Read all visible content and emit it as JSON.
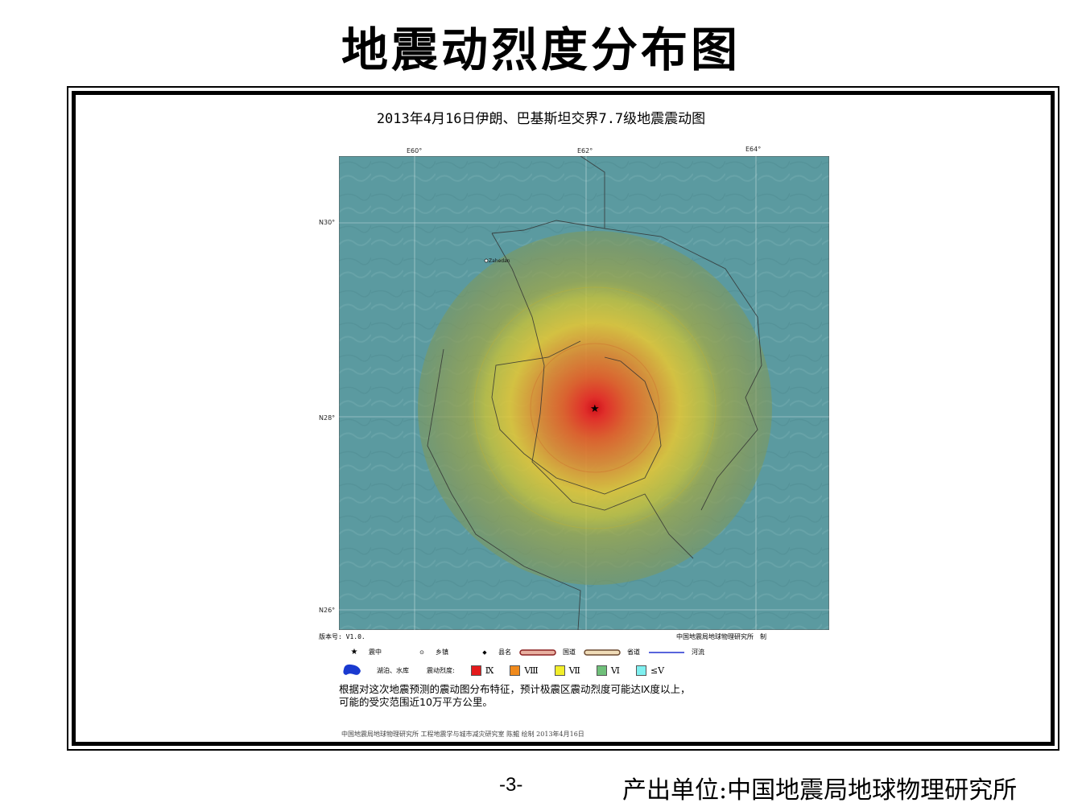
{
  "slide": {
    "title": "地震动烈度分布图",
    "page_number": "-3-",
    "producer": "产出单位:中国地震局地球物理研究所"
  },
  "map": {
    "title": "2013年4月16日伊朗、巴基斯坦交界7.7级地震震动图",
    "lon_ticks": [
      "E60°",
      "E62°",
      "E64°"
    ],
    "lat_ticks": [
      "N30°",
      "N28°",
      "N26°"
    ],
    "city_label": "Zahedan",
    "version": "版本号: V1.0.",
    "maker": "中国地震局地球物理研究所　制",
    "colors": {
      "background": "#5b9aa0",
      "intensity_IX": "#e41a1c",
      "intensity_VIII": "#f08a1c",
      "intensity_VII": "#f2ee2a",
      "intensity_VI": "#6fc07a",
      "intensity_le_V": "#7ff0f0"
    }
  },
  "legend": {
    "row1": [
      {
        "icon": "star-icon",
        "label": "震中"
      },
      {
        "icon": "town-icon",
        "label": "乡镇"
      },
      {
        "icon": "county-icon",
        "label": "县名"
      },
      {
        "icon": "national-road-icon",
        "label": "国道"
      },
      {
        "icon": "provincial-road-icon",
        "label": "省道"
      },
      {
        "icon": "river-icon",
        "label": "河流"
      }
    ],
    "lake_label": "湖泊、水库",
    "intensity_label": "震动烈度:",
    "intensities": [
      "Ⅸ",
      "Ⅷ",
      "Ⅶ",
      "Ⅵ",
      "≤Ⅴ"
    ]
  },
  "description": {
    "line1": "根据对这次地震预测的震动图分布特征，预计极震区震动烈度可能达Ⅸ度以上，",
    "line2": "可能的受灾范围近10万平方公里。"
  },
  "credit": "中国地震局地球物理研究所 工程地震学与城市减灾研究室 陈鲲 绘制 2013年4月16日"
}
